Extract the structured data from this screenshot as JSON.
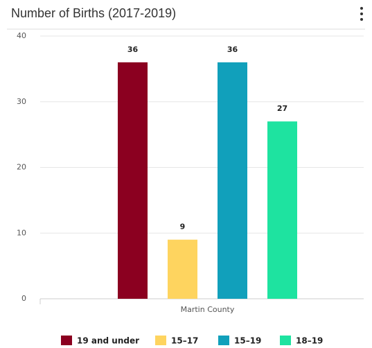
{
  "chart_data": {
    "type": "bar",
    "title": "Number of Births (2017-2019)",
    "categories": [
      "Martin County"
    ],
    "series": [
      {
        "name": "19 and under",
        "color": "#8b0020",
        "values": [
          36
        ]
      },
      {
        "name": "15–17",
        "color": "#fed45f",
        "values": [
          9
        ]
      },
      {
        "name": "15–19",
        "color": "#11a0bb",
        "values": [
          36
        ]
      },
      {
        "name": "18–19",
        "color": "#1ee3a0",
        "values": [
          27
        ]
      }
    ],
    "ylim": [
      0,
      40
    ],
    "yticks": [
      0,
      10,
      20,
      30,
      40
    ],
    "grid": true,
    "legend": "bottom"
  }
}
